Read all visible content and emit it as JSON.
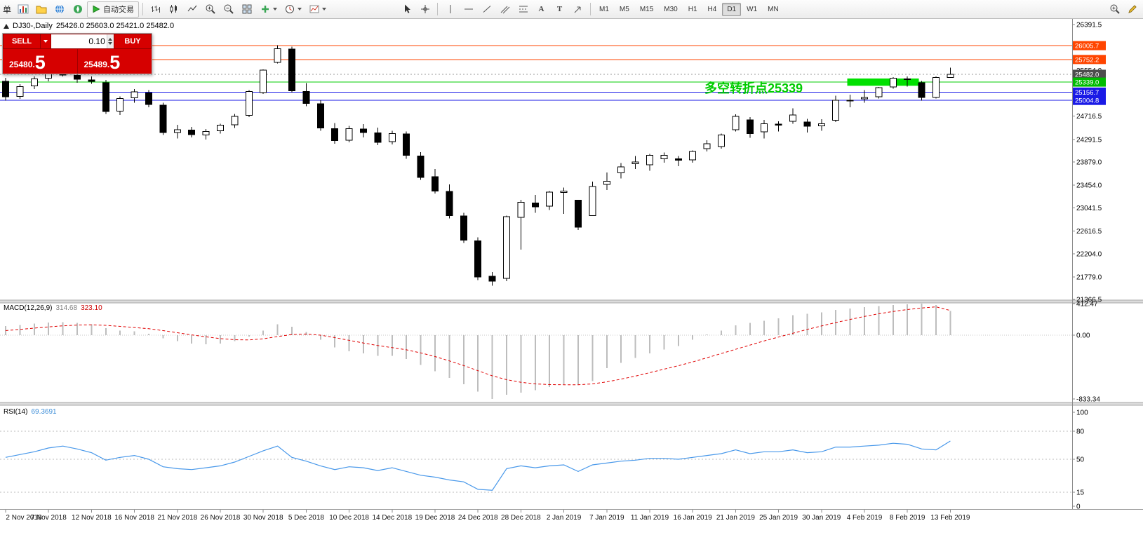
{
  "toolbar": {
    "order_label": "单",
    "autotrading_label": "自动交易",
    "text_tool_label": "A",
    "label_tool_label": "T",
    "timeframes": [
      "M1",
      "M5",
      "M15",
      "M30",
      "H1",
      "H4",
      "D1",
      "W1",
      "MN"
    ],
    "active_timeframe": "D1"
  },
  "chart_header": {
    "title": "DJ30-,Daily",
    "ohlc": "25426.0 25603.0 25421.0 25482.0"
  },
  "trade_panel": {
    "sell_label": "SELL",
    "buy_label": "BUY",
    "lot_value": "0.10",
    "sell_price_main": "25480.",
    "sell_price_big": "5",
    "buy_price_main": "25489.",
    "buy_price_big": "5"
  },
  "annotation": {
    "text": "多空转折点25339",
    "color": "#00cc00"
  },
  "macd_panel": {
    "name": "MACD(12,26,9)",
    "value_main": "314.68",
    "value_signal": "323.10",
    "axis_labels": [
      {
        "text": "412.47",
        "value": 412.47
      },
      {
        "text": "0.00",
        "value": 0
      },
      {
        "text": "-833.34",
        "value": -833.34
      }
    ]
  },
  "rsi_panel": {
    "name": "RSI(14)",
    "value": "69.3691",
    "axis_labels": [
      {
        "text": "100",
        "value": 100
      },
      {
        "text": "80",
        "value": 80
      },
      {
        "text": "50",
        "value": 50
      },
      {
        "text": "15",
        "value": 15
      },
      {
        "text": "0",
        "value": 0
      }
    ],
    "levels": [
      80,
      50,
      15
    ]
  },
  "price_axis": {
    "labels": [
      {
        "text": "26391.5",
        "value": 26391.5
      },
      {
        "text": "25554.0",
        "value": 25554.0
      },
      {
        "text": "24716.5",
        "value": 24716.5
      },
      {
        "text": "24291.5",
        "value": 24291.5
      },
      {
        "text": "23879.0",
        "value": 23879.0
      },
      {
        "text": "23454.0",
        "value": 23454.0
      },
      {
        "text": "23041.5",
        "value": 23041.5
      },
      {
        "text": "22616.5",
        "value": 22616.5
      },
      {
        "text": "22204.0",
        "value": 22204.0
      },
      {
        "text": "21779.0",
        "value": 21779.0
      },
      {
        "text": "21366.5",
        "value": 21366.5
      }
    ]
  },
  "price_tags": [
    {
      "text": "26005.7",
      "value": 26005.7,
      "color": "#ff4500"
    },
    {
      "text": "25752.2",
      "value": 25752.2,
      "color": "#ff4500"
    },
    {
      "text": "25482.0",
      "value": 25482.0,
      "color": "#4d4d4d"
    },
    {
      "text": "25339.0",
      "value": 25339.0,
      "color": "#00bb00"
    },
    {
      "text": "25156.7",
      "value": 25156.7,
      "color": "#1a1ae6"
    },
    {
      "text": "25004.8",
      "value": 25004.8,
      "color": "#1a1ae6"
    }
  ],
  "chart_data": {
    "type": "candlestick",
    "symbol": "DJ30-",
    "period": "Daily",
    "current_ohlc": {
      "open": 25426.0,
      "high": 25603.0,
      "low": 25421.0,
      "close": 25482.0
    },
    "x_label_step": 3,
    "x_labels": [
      "2 Nov 2018",
      "7 Nov 2018",
      "12 Nov 2018",
      "16 Nov 2018",
      "21 Nov 2018",
      "26 Nov 2018",
      "30 Nov 2018",
      "5 Dec 2018",
      "10 Dec 2018",
      "14 Dec 2018",
      "19 Dec 2018",
      "24 Dec 2018",
      "28 Dec 2018",
      "2 Jan 2019",
      "7 Jan 2019",
      "11 Jan 2019",
      "16 Jan 2019",
      "21 Jan 2019",
      "25 Jan 2019",
      "30 Jan 2019",
      "4 Feb 2019",
      "8 Feb 2019",
      "13 Feb 2019"
    ],
    "price_range_visible": [
      21330,
      26455
    ],
    "candles": [
      [
        25350,
        25420,
        25000,
        25070
      ],
      [
        25080,
        25300,
        25030,
        25260
      ],
      [
        25270,
        25440,
        25210,
        25400
      ],
      [
        25410,
        25560,
        25350,
        25520
      ],
      [
        25520,
        25620,
        25440,
        25470
      ],
      [
        25460,
        25500,
        25330,
        25390
      ],
      [
        25380,
        25440,
        25310,
        25350
      ],
      [
        25330,
        25380,
        24760,
        24800
      ],
      [
        24810,
        25080,
        24740,
        25040
      ],
      [
        25050,
        25210,
        24960,
        25160
      ],
      [
        25140,
        25190,
        24880,
        24930
      ],
      [
        24920,
        24960,
        24370,
        24420
      ],
      [
        24420,
        24560,
        24310,
        24470
      ],
      [
        24460,
        24520,
        24330,
        24380
      ],
      [
        24370,
        24480,
        24290,
        24440
      ],
      [
        24450,
        24580,
        24400,
        24550
      ],
      [
        24560,
        24760,
        24500,
        24710
      ],
      [
        24730,
        25190,
        24700,
        25170
      ],
      [
        25150,
        25570,
        25120,
        25560
      ],
      [
        25700,
        26010,
        25680,
        25950
      ],
      [
        25940,
        25990,
        25150,
        25180
      ],
      [
        25170,
        25320,
        24900,
        24950
      ],
      [
        24940,
        25010,
        24450,
        24500
      ],
      [
        24490,
        24590,
        24210,
        24270
      ],
      [
        24280,
        24540,
        24240,
        24490
      ],
      [
        24480,
        24570,
        24330,
        24420
      ],
      [
        24410,
        24510,
        24190,
        24240
      ],
      [
        24250,
        24450,
        24200,
        24400
      ],
      [
        24390,
        24440,
        23940,
        24000
      ],
      [
        23990,
        24060,
        23550,
        23600
      ],
      [
        23610,
        23750,
        23300,
        23350
      ],
      [
        23340,
        23470,
        22850,
        22900
      ],
      [
        22890,
        22950,
        22400,
        22450
      ],
      [
        22440,
        22500,
        21720,
        21780
      ],
      [
        21790,
        21870,
        21620,
        21700
      ],
      [
        21750,
        22900,
        21700,
        22880
      ],
      [
        22870,
        23190,
        22280,
        23140
      ],
      [
        23130,
        23280,
        22950,
        23060
      ],
      [
        23070,
        23350,
        23000,
        23330
      ],
      [
        23320,
        23410,
        22930,
        23350
      ],
      [
        23180,
        23190,
        22640,
        22690
      ],
      [
        22900,
        23520,
        22890,
        23430
      ],
      [
        23470,
        23690,
        23370,
        23530
      ],
      [
        23680,
        23860,
        23580,
        23790
      ],
      [
        23850,
        23990,
        23750,
        23880
      ],
      [
        23830,
        24030,
        23720,
        24000
      ],
      [
        23940,
        24050,
        23870,
        24000
      ],
      [
        23940,
        23990,
        23800,
        23910
      ],
      [
        23920,
        24090,
        23870,
        24070
      ],
      [
        24120,
        24280,
        24070,
        24210
      ],
      [
        24160,
        24400,
        24120,
        24370
      ],
      [
        24470,
        24750,
        24440,
        24710
      ],
      [
        24650,
        24700,
        24320,
        24400
      ],
      [
        24430,
        24650,
        24310,
        24580
      ],
      [
        24570,
        24620,
        24440,
        24550
      ],
      [
        24620,
        24860,
        24580,
        24740
      ],
      [
        24610,
        24670,
        24420,
        24530
      ],
      [
        24540,
        24660,
        24450,
        24580
      ],
      [
        24640,
        25090,
        24610,
        25010
      ],
      [
        25010,
        25110,
        24880,
        25000
      ],
      [
        25030,
        25190,
        24960,
        25060
      ],
      [
        25070,
        25250,
        25040,
        25240
      ],
      [
        25250,
        25430,
        25220,
        25410
      ],
      [
        25400,
        25440,
        25260,
        25390
      ],
      [
        25330,
        25360,
        25000,
        25060
      ],
      [
        25060,
        25440,
        25040,
        25425
      ],
      [
        25426,
        25603,
        25421,
        25482
      ]
    ],
    "levels": [
      {
        "price": 26005.7,
        "color": "#ff4500",
        "style": "solid"
      },
      {
        "price": 25752.2,
        "color": "#ff4500",
        "style": "solid"
      },
      {
        "price": 25339.0,
        "color": "#00cc00",
        "style": "solid"
      },
      {
        "price": 25156.7,
        "color": "#1a1ae6",
        "style": "solid"
      },
      {
        "price": 25004.8,
        "color": "#1a1ae6",
        "style": "solid"
      },
      {
        "price": 25482.0,
        "color": "#999999",
        "style": "dot",
        "role": "current-price"
      }
    ],
    "highlight_zone": {
      "from_index": 58.8,
      "to_index": 63.8,
      "price_top": 25405,
      "price_bottom": 25272,
      "color": "#00e000"
    },
    "indicators": [
      {
        "type": "macd",
        "params": "12,26,9",
        "range": [
          -833.34,
          412.47
        ],
        "histogram": [
          120,
          135,
          150,
          165,
          170,
          160,
          140,
          90,
          60,
          50,
          20,
          -40,
          -80,
          -110,
          -120,
          -110,
          -80,
          -20,
          60,
          140,
          110,
          40,
          -60,
          -160,
          -210,
          -240,
          -270,
          -270,
          -310,
          -390,
          -470,
          -560,
          -640,
          -740,
          -833.34,
          -780,
          -750,
          -720,
          -680,
          -640,
          -650,
          -600,
          -430,
          -360,
          -300,
          -240,
          -190,
          -140,
          -60,
          10,
          60,
          130,
          160,
          190,
          220,
          260,
          280,
          300,
          330,
          350,
          365,
          380,
          395,
          405,
          412.47,
          395,
          314.68
        ],
        "signal": [
          60,
          75,
          92,
          108,
          122,
          132,
          136,
          128,
          115,
          100,
          84,
          60,
          32,
          4,
          -22,
          -45,
          -60,
          -62,
          -48,
          -18,
          8,
          15,
          0,
          -32,
          -68,
          -103,
          -136,
          -163,
          -192,
          -232,
          -280,
          -336,
          -397,
          -465,
          -532,
          -582,
          -616,
          -637,
          -646,
          -648,
          -648,
          -637,
          -610,
          -575,
          -535,
          -490,
          -445,
          -400,
          -350,
          -295,
          -240,
          -185,
          -130,
          -75,
          -25,
          25,
          75,
          120,
          165,
          205,
          245,
          280,
          310,
          335,
          355,
          370,
          323.1
        ]
      },
      {
        "type": "rsi",
        "params": "14",
        "range": [
          0,
          100
        ],
        "values": [
          52,
          55,
          58,
          62,
          64,
          61,
          57,
          49,
          52,
          54,
          50,
          42,
          40,
          39,
          41,
          43,
          47,
          53,
          59,
          64,
          52,
          48,
          43,
          39,
          42,
          41,
          38,
          41,
          37,
          33,
          31,
          28,
          26,
          18,
          17,
          40,
          43,
          41,
          43,
          44,
          37,
          44,
          46,
          48,
          49,
          51,
          51,
          50,
          52,
          54,
          56,
          60,
          56,
          58,
          58,
          60,
          57,
          58,
          63,
          63,
          64,
          65,
          67,
          66,
          61,
          60,
          69.3691
        ]
      }
    ]
  }
}
